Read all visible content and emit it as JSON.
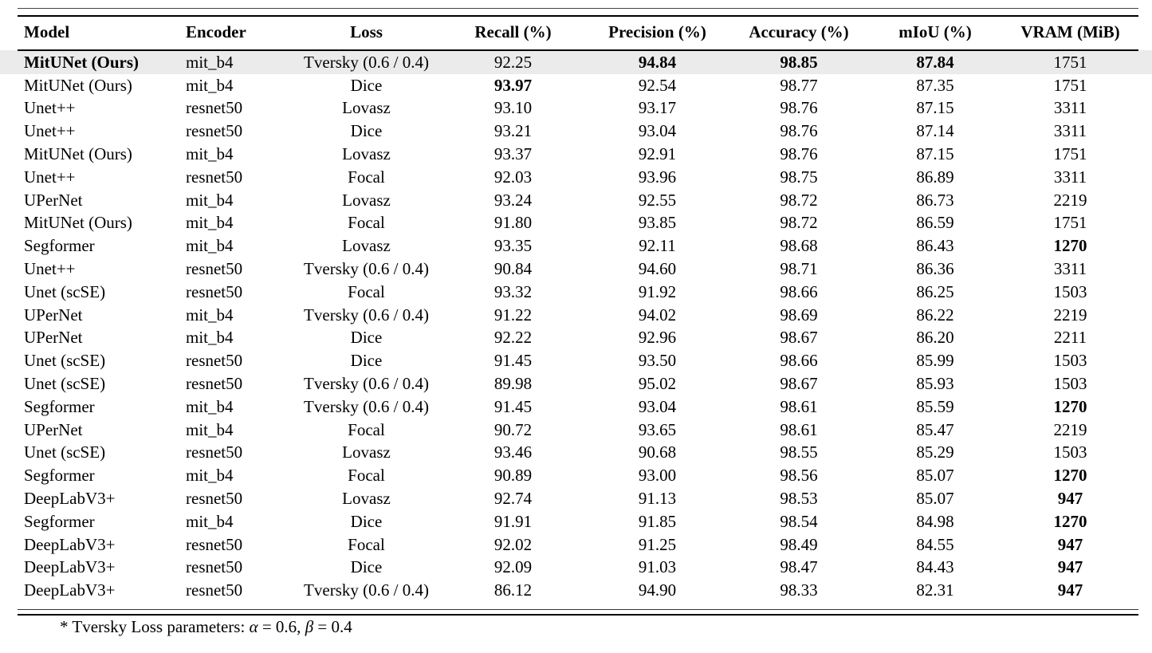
{
  "page": {
    "background": "#ffffff",
    "highlight_color": "#ebebeb",
    "rule_color": "#000000"
  },
  "table": {
    "columns": [
      {
        "key": "model",
        "label": "Model",
        "align": "left"
      },
      {
        "key": "encoder",
        "label": "Encoder",
        "align": "left"
      },
      {
        "key": "loss",
        "label": "Loss",
        "align": "center"
      },
      {
        "key": "recall",
        "label": "Recall (%)",
        "align": "center"
      },
      {
        "key": "precision",
        "label": "Precision (%)",
        "align": "center"
      },
      {
        "key": "accuracy",
        "label": "Accuracy (%)",
        "align": "center"
      },
      {
        "key": "miou",
        "label": "mIoU (%)",
        "align": "center"
      },
      {
        "key": "vram",
        "label": "VRAM (MiB)",
        "align": "center"
      }
    ],
    "rows": [
      {
        "model": "MitUNet (Ours)",
        "encoder": "mit_b4",
        "loss": "Tversky (0.6 / 0.4)",
        "recall": "92.25",
        "precision": "94.84",
        "accuracy": "98.85",
        "miou": "87.84",
        "vram": "1751",
        "bold": [
          "model",
          "precision",
          "accuracy",
          "miou"
        ],
        "highlight": true
      },
      {
        "model": "MitUNet (Ours)",
        "encoder": "mit_b4",
        "loss": "Dice",
        "recall": "93.97",
        "precision": "92.54",
        "accuracy": "98.77",
        "miou": "87.35",
        "vram": "1751",
        "bold": [
          "recall"
        ],
        "highlight": false
      },
      {
        "model": "Unet++",
        "encoder": "resnet50",
        "loss": "Lovasz",
        "recall": "93.10",
        "precision": "93.17",
        "accuracy": "98.76",
        "miou": "87.15",
        "vram": "3311",
        "bold": [],
        "highlight": false
      },
      {
        "model": "Unet++",
        "encoder": "resnet50",
        "loss": "Dice",
        "recall": "93.21",
        "precision": "93.04",
        "accuracy": "98.76",
        "miou": "87.14",
        "vram": "3311",
        "bold": [],
        "highlight": false
      },
      {
        "model": "MitUNet (Ours)",
        "encoder": "mit_b4",
        "loss": "Lovasz",
        "recall": "93.37",
        "precision": "92.91",
        "accuracy": "98.76",
        "miou": "87.15",
        "vram": "1751",
        "bold": [],
        "highlight": false
      },
      {
        "model": "Unet++",
        "encoder": "resnet50",
        "loss": "Focal",
        "recall": "92.03",
        "precision": "93.96",
        "accuracy": "98.75",
        "miou": "86.89",
        "vram": "3311",
        "bold": [],
        "highlight": false
      },
      {
        "model": "UPerNet",
        "encoder": "mit_b4",
        "loss": "Lovasz",
        "recall": "93.24",
        "precision": "92.55",
        "accuracy": "98.72",
        "miou": "86.73",
        "vram": "2219",
        "bold": [],
        "highlight": false
      },
      {
        "model": "MitUNet (Ours)",
        "encoder": "mit_b4",
        "loss": "Focal",
        "recall": "91.80",
        "precision": "93.85",
        "accuracy": "98.72",
        "miou": "86.59",
        "vram": "1751",
        "bold": [],
        "highlight": false
      },
      {
        "model": "Segformer",
        "encoder": "mit_b4",
        "loss": "Lovasz",
        "recall": "93.35",
        "precision": "92.11",
        "accuracy": "98.68",
        "miou": "86.43",
        "vram": "1270",
        "bold": [
          "vram"
        ],
        "highlight": false
      },
      {
        "model": "Unet++",
        "encoder": "resnet50",
        "loss": "Tversky (0.6 / 0.4)",
        "recall": "90.84",
        "precision": "94.60",
        "accuracy": "98.71",
        "miou": "86.36",
        "vram": "3311",
        "bold": [],
        "highlight": false
      },
      {
        "model": "Unet (scSE)",
        "encoder": "resnet50",
        "loss": "Focal",
        "recall": "93.32",
        "precision": "91.92",
        "accuracy": "98.66",
        "miou": "86.25",
        "vram": "1503",
        "bold": [],
        "highlight": false
      },
      {
        "model": "UPerNet",
        "encoder": "mit_b4",
        "loss": "Tversky (0.6 / 0.4)",
        "recall": "91.22",
        "precision": "94.02",
        "accuracy": "98.69",
        "miou": "86.22",
        "vram": "2219",
        "bold": [],
        "highlight": false
      },
      {
        "model": "UPerNet",
        "encoder": "mit_b4",
        "loss": "Dice",
        "recall": "92.22",
        "precision": "92.96",
        "accuracy": "98.67",
        "miou": "86.20",
        "vram": "2211",
        "bold": [],
        "highlight": false
      },
      {
        "model": "Unet (scSE)",
        "encoder": "resnet50",
        "loss": "Dice",
        "recall": "91.45",
        "precision": "93.50",
        "accuracy": "98.66",
        "miou": "85.99",
        "vram": "1503",
        "bold": [],
        "highlight": false
      },
      {
        "model": "Unet (scSE)",
        "encoder": "resnet50",
        "loss": "Tversky (0.6 / 0.4)",
        "recall": "89.98",
        "precision": "95.02",
        "accuracy": "98.67",
        "miou": "85.93",
        "vram": "1503",
        "bold": [],
        "highlight": false
      },
      {
        "model": "Segformer",
        "encoder": "mit_b4",
        "loss": "Tversky (0.6 / 0.4)",
        "recall": "91.45",
        "precision": "93.04",
        "accuracy": "98.61",
        "miou": "85.59",
        "vram": "1270",
        "bold": [
          "vram"
        ],
        "highlight": false
      },
      {
        "model": "UPerNet",
        "encoder": "mit_b4",
        "loss": "Focal",
        "recall": "90.72",
        "precision": "93.65",
        "accuracy": "98.61",
        "miou": "85.47",
        "vram": "2219",
        "bold": [],
        "highlight": false
      },
      {
        "model": "Unet (scSE)",
        "encoder": "resnet50",
        "loss": "Lovasz",
        "recall": "93.46",
        "precision": "90.68",
        "accuracy": "98.55",
        "miou": "85.29",
        "vram": "1503",
        "bold": [],
        "highlight": false
      },
      {
        "model": "Segformer",
        "encoder": "mit_b4",
        "loss": "Focal",
        "recall": "90.89",
        "precision": "93.00",
        "accuracy": "98.56",
        "miou": "85.07",
        "vram": "1270",
        "bold": [
          "vram"
        ],
        "highlight": false
      },
      {
        "model": "DeepLabV3+",
        "encoder": "resnet50",
        "loss": "Lovasz",
        "recall": "92.74",
        "precision": "91.13",
        "accuracy": "98.53",
        "miou": "85.07",
        "vram": "947",
        "bold": [
          "vram"
        ],
        "highlight": false
      },
      {
        "model": "Segformer",
        "encoder": "mit_b4",
        "loss": "Dice",
        "recall": "91.91",
        "precision": "91.85",
        "accuracy": "98.54",
        "miou": "84.98",
        "vram": "1270",
        "bold": [
          "vram"
        ],
        "highlight": false
      },
      {
        "model": "DeepLabV3+",
        "encoder": "resnet50",
        "loss": "Focal",
        "recall": "92.02",
        "precision": "91.25",
        "accuracy": "98.49",
        "miou": "84.55",
        "vram": "947",
        "bold": [
          "vram"
        ],
        "highlight": false
      },
      {
        "model": "DeepLabV3+",
        "encoder": "resnet50",
        "loss": "Dice",
        "recall": "92.09",
        "precision": "91.03",
        "accuracy": "98.47",
        "miou": "84.43",
        "vram": "947",
        "bold": [
          "vram"
        ],
        "highlight": false
      },
      {
        "model": "DeepLabV3+",
        "encoder": "resnet50",
        "loss": "Tversky (0.6 / 0.4)",
        "recall": "86.12",
        "precision": "94.90",
        "accuracy": "98.33",
        "miou": "82.31",
        "vram": "947",
        "bold": [
          "vram"
        ],
        "highlight": false
      }
    ]
  },
  "footnote": {
    "parts": [
      "* Tversky Loss parameters: ",
      "α",
      " = 0.6, ",
      "β",
      " = 0.4"
    ]
  }
}
